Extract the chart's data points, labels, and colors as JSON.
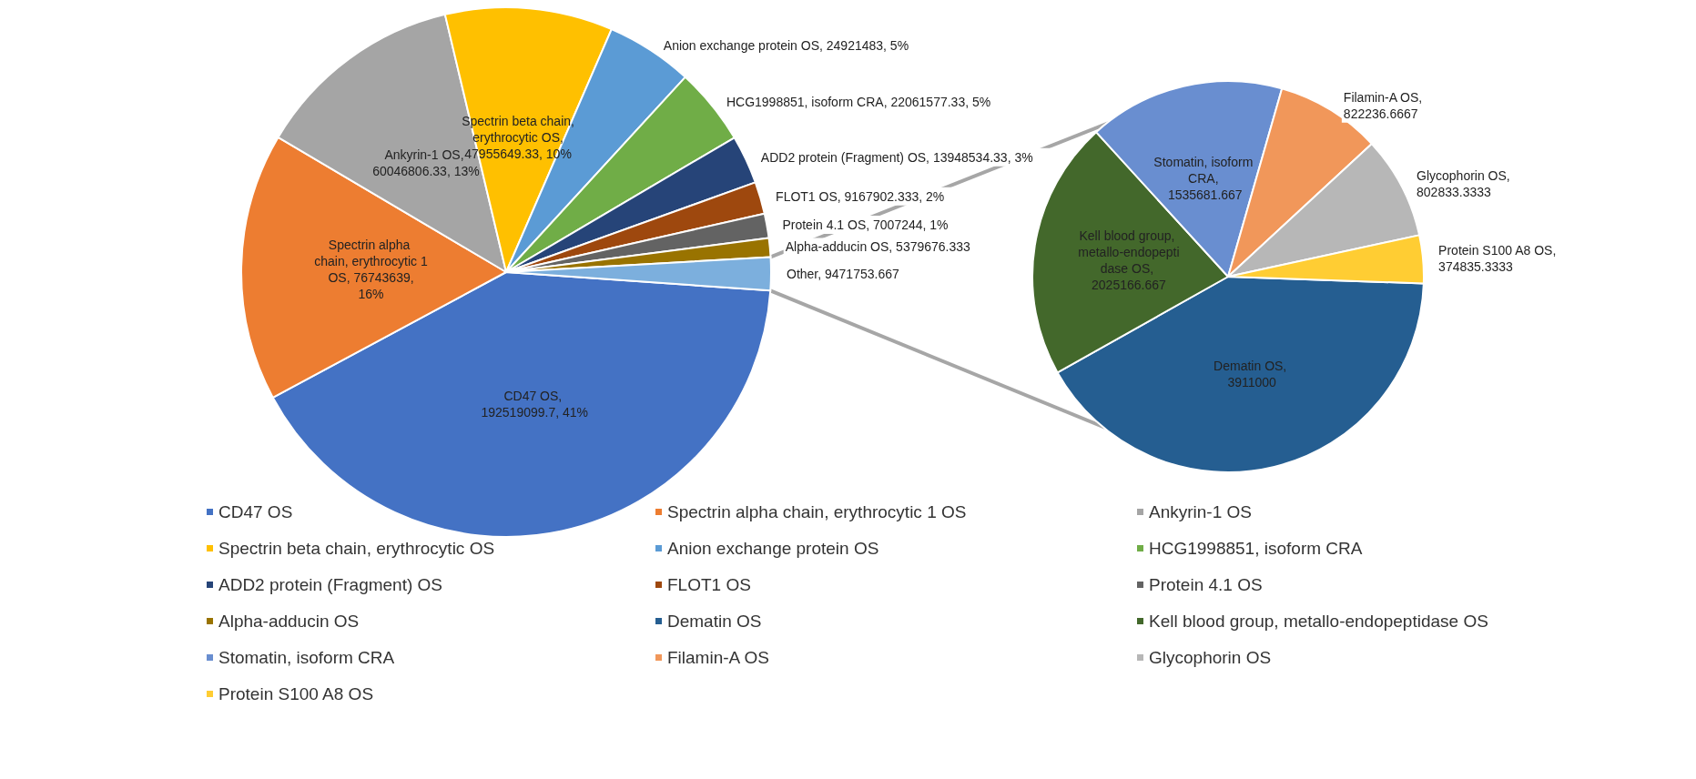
{
  "chart_data": [
    {
      "type": "pie",
      "legend": "bottom",
      "categories": [
        "CD47 OS",
        "Spectrin alpha chain, erythrocytic 1 OS",
        "Ankyrin-1 OS",
        "Spectrin beta chain, erythrocytic OS",
        "Anion exchange protein OS",
        "HCG1998851, isoform CRA",
        "ADD2 protein (Fragment) OS",
        "FLOT1 OS",
        "Protein 4.1 OS",
        "Alpha-adducin OS",
        null
      ],
      "values": [
        192519099.7,
        76743639,
        60046806.33,
        47955649.33,
        24921483,
        22061577.33,
        13948534.33,
        9167902.333,
        7007244,
        5379676.333,
        9471753.667
      ],
      "value_labels": [
        "CD47 OS, 192519099.7, 41%",
        "Spectrin alpha chain, erythrocytic 1 OS, 76743639, 16%",
        "Ankyrin-1 OS, 60046806.33, 13%",
        "Spectrin beta chain, erythrocytic OS, 47955649.33, 10%",
        "Anion exchange protein OS, 24921483, 5%",
        "HCG1998851, isoform CRA, 22061577.33, 5%",
        "ADD2 protein (Fragment) OS, 13948534.33, 3%",
        "FLOT1 OS, 9167902.333, 2%",
        "Protein 4.1 OS, 7007244, 1%",
        "Alpha-adducin OS, 5379676.333",
        "Other, 9471753.667"
      ],
      "colors": [
        "#4472c4",
        "#ed7d31",
        "#a5a5a5",
        "#ffc000",
        "#5b9bd5",
        "#70ad47",
        "#264478",
        "#9e480e",
        "#636363",
        "#997300",
        "#7cafdd"
      ]
    },
    {
      "type": "pie",
      "legend": "bottom",
      "categories": [
        "Dematin OS",
        "Kell blood group, metallo-endopeptidase OS",
        "Stomatin, isoform CRA",
        "Filamin-A OS",
        "Glycophorin OS",
        "Protein S100 A8 OS"
      ],
      "values": [
        3911000,
        2025166.667,
        1535681.667,
        822236.6667,
        802833.3333,
        374835.3333
      ],
      "value_labels": [
        "Dematin OS, 3911000",
        "Kell blood group, metallo-endopeptidase OS, 2025166.667",
        "Stomatin, isoform CRA, 1535681.667",
        "Filamin-A OS, 822236.6667",
        "Glycophorin OS, 802833.3333",
        "Protein S100 A8 OS, 374835.3333"
      ],
      "colors": [
        "#255e91",
        "#43682b",
        "#698ed0",
        "#f1975a",
        "#b7b7b7",
        "#ffcd33"
      ]
    }
  ]
}
